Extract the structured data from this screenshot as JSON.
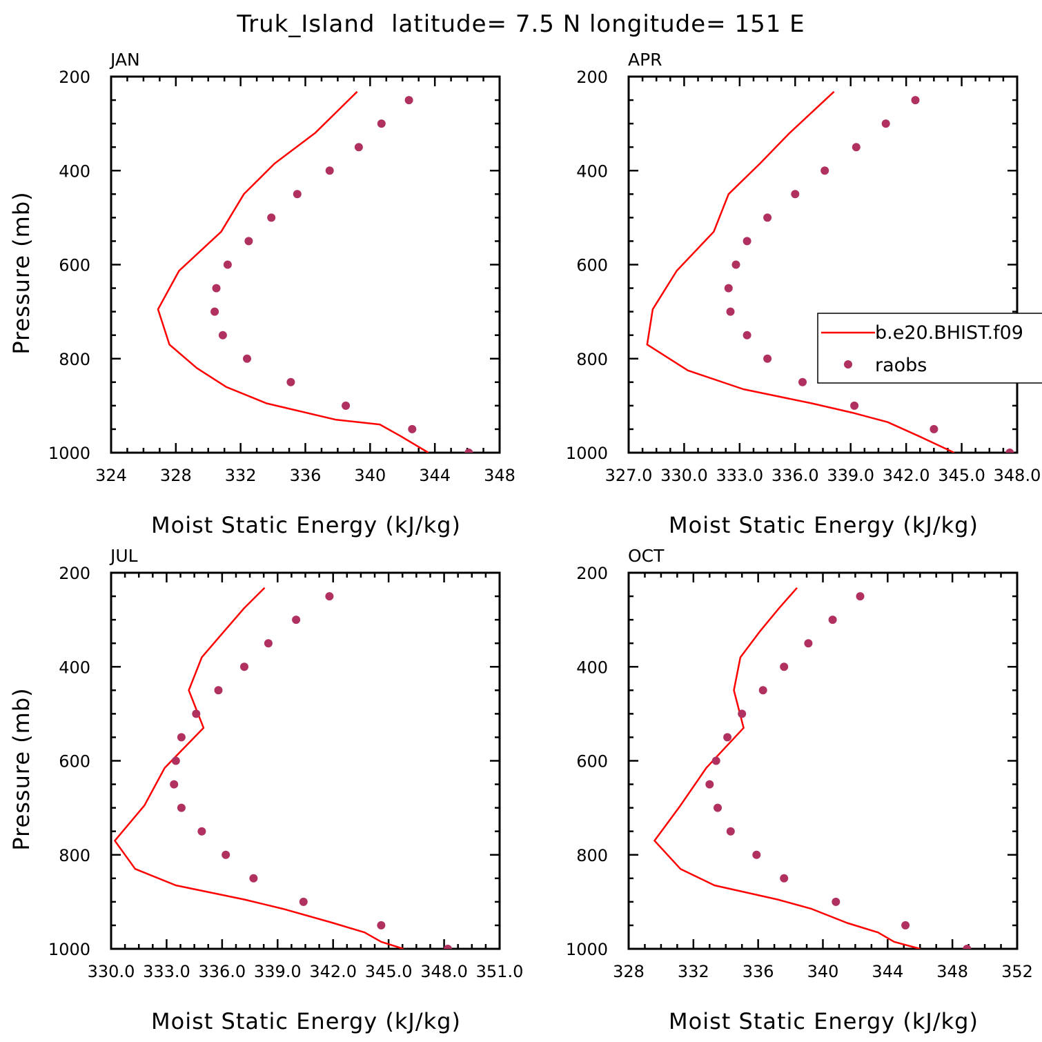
{
  "figure": {
    "title": "Truk_Island  latitude= 7.5 N longitude= 151 E"
  },
  "legend": {
    "model_label": "b.e20.BHIST.f09",
    "obs_label": "raobs",
    "model_color": "#ff0000",
    "obs_color": "#b03060"
  },
  "chart_data": [
    {
      "type": "line",
      "panel": "JAN",
      "xlabel": "Moist Static Energy (kJ/kg)",
      "ylabel": "Pressure (mb)",
      "xlim": [
        324,
        348
      ],
      "ylim": [
        1000,
        200
      ],
      "x_ticks": [
        324,
        328,
        332,
        336,
        340,
        344,
        348
      ],
      "x_tick_labels": [
        "324",
        "328",
        "332",
        "336",
        "340",
        "344",
        "348"
      ],
      "y_ticks": [
        200,
        400,
        600,
        800,
        1000
      ],
      "y_tick_labels": [
        "200",
        "400",
        "600",
        "800",
        "1000"
      ],
      "legend": false,
      "series": [
        {
          "name": "b.e20.BHIST.f09",
          "kind": "line",
          "points": [
            [
              339.2,
              232
            ],
            [
              336.6,
              320
            ],
            [
              334.1,
              385
            ],
            [
              332.2,
              450
            ],
            [
              330.8,
              530
            ],
            [
              328.2,
              613
            ],
            [
              326.9,
              695
            ],
            [
              327.6,
              770
            ],
            [
              329.3,
              820
            ],
            [
              331.1,
              860
            ],
            [
              333.6,
              895
            ],
            [
              337.9,
              930
            ],
            [
              340.6,
              940
            ],
            [
              341.9,
              965
            ],
            [
              343.6,
              1000
            ]
          ]
        },
        {
          "name": "raobs",
          "kind": "scatter",
          "points": [
            [
              342.4,
              250
            ],
            [
              340.7,
              300
            ],
            [
              339.3,
              350
            ],
            [
              337.5,
              400
            ],
            [
              335.5,
              450
            ],
            [
              333.9,
              500
            ],
            [
              332.5,
              550
            ],
            [
              331.2,
              600
            ],
            [
              330.5,
              650
            ],
            [
              330.4,
              700
            ],
            [
              330.9,
              750
            ],
            [
              332.4,
              800
            ],
            [
              335.1,
              850
            ],
            [
              338.5,
              900
            ],
            [
              342.6,
              950
            ],
            [
              346.1,
              1000
            ]
          ]
        }
      ]
    },
    {
      "type": "line",
      "panel": "APR",
      "xlabel": "Moist Static Energy (kJ/kg)",
      "ylabel": "",
      "xlim": [
        327.0,
        348.0
      ],
      "ylim": [
        1000,
        200
      ],
      "x_ticks": [
        327.0,
        330.0,
        333.0,
        336.0,
        339.0,
        342.0,
        345.0,
        348.0
      ],
      "x_tick_labels": [
        "327.0",
        "330.0",
        "333.0",
        "336.0",
        "339.0",
        "342.0",
        "345.0",
        "348.0"
      ],
      "y_ticks": [
        200,
        400,
        600,
        800,
        1000
      ],
      "y_tick_labels": [
        "200",
        "400",
        "600",
        "800",
        "1000"
      ],
      "legend": true,
      "series": [
        {
          "name": "b.e20.BHIST.f09",
          "kind": "line",
          "points": [
            [
              338.1,
              232
            ],
            [
              335.7,
              320
            ],
            [
              334.1,
              385
            ],
            [
              332.4,
              450
            ],
            [
              331.6,
              530
            ],
            [
              329.6,
              613
            ],
            [
              328.3,
              695
            ],
            [
              328.0,
              770
            ],
            [
              330.2,
              825
            ],
            [
              333.2,
              865
            ],
            [
              336.9,
              895
            ],
            [
              339.1,
              915
            ],
            [
              341.0,
              935
            ],
            [
              342.7,
              965
            ],
            [
              344.6,
              1000
            ]
          ]
        },
        {
          "name": "raobs",
          "kind": "scatter",
          "points": [
            [
              342.5,
              250
            ],
            [
              340.9,
              300
            ],
            [
              339.3,
              350
            ],
            [
              337.6,
              400
            ],
            [
              336.0,
              450
            ],
            [
              334.5,
              500
            ],
            [
              333.4,
              550
            ],
            [
              332.8,
              600
            ],
            [
              332.4,
              650
            ],
            [
              332.5,
              700
            ],
            [
              333.4,
              750
            ],
            [
              334.5,
              800
            ],
            [
              336.4,
              850
            ],
            [
              339.2,
              900
            ],
            [
              343.5,
              950
            ],
            [
              347.6,
              1000
            ]
          ]
        }
      ]
    },
    {
      "type": "line",
      "panel": "JUL",
      "xlabel": "Moist Static Energy (kJ/kg)",
      "ylabel": "Pressure (mb)",
      "xlim": [
        330.0,
        351.0
      ],
      "ylim": [
        1000,
        200
      ],
      "x_ticks": [
        330.0,
        333.0,
        336.0,
        339.0,
        342.0,
        345.0,
        348.0,
        351.0
      ],
      "x_tick_labels": [
        "330.0",
        "333.0",
        "336.0",
        "339.0",
        "342.0",
        "345.0",
        "348.0",
        "351.0"
      ],
      "y_ticks": [
        200,
        400,
        600,
        800,
        1000
      ],
      "y_tick_labels": [
        "200",
        "400",
        "600",
        "800",
        "1000"
      ],
      "legend": false,
      "series": [
        {
          "name": "b.e20.BHIST.f09",
          "kind": "line",
          "points": [
            [
              338.3,
              232
            ],
            [
              337.2,
              275
            ],
            [
              336.1,
              325
            ],
            [
              334.9,
              380
            ],
            [
              334.2,
              450
            ],
            [
              335.0,
              530
            ],
            [
              332.9,
              615
            ],
            [
              331.8,
              695
            ],
            [
              330.2,
              770
            ],
            [
              331.3,
              830
            ],
            [
              333.5,
              865
            ],
            [
              337.2,
              895
            ],
            [
              339.3,
              915
            ],
            [
              342.0,
              945
            ],
            [
              343.7,
              965
            ],
            [
              344.6,
              985
            ],
            [
              345.8,
              1000
            ]
          ]
        },
        {
          "name": "raobs",
          "kind": "scatter",
          "points": [
            [
              341.8,
              250
            ],
            [
              340.0,
              300
            ],
            [
              338.5,
              350
            ],
            [
              337.2,
              400
            ],
            [
              335.8,
              450
            ],
            [
              334.6,
              500
            ],
            [
              333.8,
              550
            ],
            [
              333.5,
              600
            ],
            [
              333.4,
              650
            ],
            [
              333.8,
              700
            ],
            [
              334.9,
              750
            ],
            [
              336.2,
              800
            ],
            [
              337.7,
              850
            ],
            [
              340.4,
              900
            ],
            [
              344.6,
              950
            ],
            [
              348.2,
              1000
            ]
          ]
        }
      ]
    },
    {
      "type": "line",
      "panel": "OCT",
      "xlabel": "Moist Static Energy (kJ/kg)",
      "ylabel": "",
      "xlim": [
        328,
        352
      ],
      "ylim": [
        1000,
        200
      ],
      "x_ticks": [
        328,
        332,
        336,
        340,
        344,
        348,
        352
      ],
      "x_tick_labels": [
        "328",
        "332",
        "336",
        "340",
        "344",
        "348",
        "352"
      ],
      "y_ticks": [
        200,
        400,
        600,
        800,
        1000
      ],
      "y_tick_labels": [
        "200",
        "400",
        "600",
        "800",
        "1000"
      ],
      "legend": false,
      "series": [
        {
          "name": "b.e20.BHIST.f09",
          "kind": "line",
          "points": [
            [
              338.4,
              232
            ],
            [
              337.3,
              275
            ],
            [
              336.1,
              325
            ],
            [
              334.9,
              380
            ],
            [
              334.5,
              450
            ],
            [
              335.1,
              530
            ],
            [
              332.8,
              615
            ],
            [
              331.2,
              695
            ],
            [
              329.6,
              770
            ],
            [
              331.2,
              830
            ],
            [
              333.3,
              865
            ],
            [
              337.2,
              895
            ],
            [
              339.3,
              915
            ],
            [
              341.5,
              945
            ],
            [
              343.4,
              965
            ],
            [
              344.4,
              985
            ],
            [
              346.0,
              1000
            ]
          ]
        },
        {
          "name": "raobs",
          "kind": "scatter",
          "points": [
            [
              342.3,
              250
            ],
            [
              340.6,
              300
            ],
            [
              339.1,
              350
            ],
            [
              337.6,
              400
            ],
            [
              336.3,
              450
            ],
            [
              335.0,
              500
            ],
            [
              334.1,
              550
            ],
            [
              333.4,
              600
            ],
            [
              333.0,
              650
            ],
            [
              333.5,
              700
            ],
            [
              334.3,
              750
            ],
            [
              335.9,
              800
            ],
            [
              337.6,
              850
            ],
            [
              340.8,
              900
            ],
            [
              345.1,
              950
            ],
            [
              348.9,
              1000
            ]
          ]
        }
      ]
    }
  ]
}
